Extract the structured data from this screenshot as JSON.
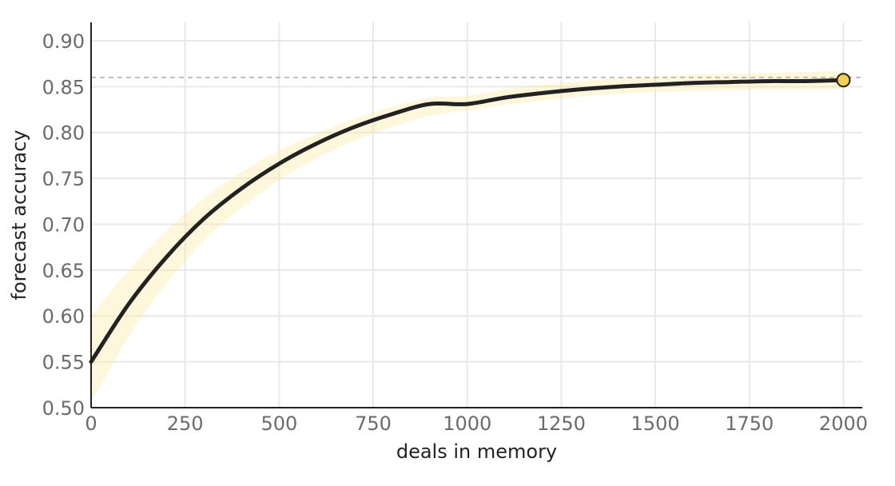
{
  "chart_data": {
    "type": "line",
    "title": "",
    "xlabel": "deals in memory",
    "ylabel": "forecast accuracy",
    "xlim": [
      0,
      2050
    ],
    "ylim": [
      0.5,
      0.92
    ],
    "x_ticks": [
      0,
      250,
      500,
      750,
      1000,
      1250,
      1500,
      1750,
      2000
    ],
    "y_ticks": [
      0.5,
      0.55,
      0.6,
      0.65,
      0.7,
      0.75,
      0.8,
      0.85,
      0.9
    ],
    "x_tick_labels": [
      "0",
      "250",
      "500",
      "750",
      "1000",
      "1250",
      "1500",
      "1750",
      "2000"
    ],
    "y_tick_labels": [
      "0.50",
      "0.55",
      "0.60",
      "0.65",
      "0.70",
      "0.75",
      "0.80",
      "0.85",
      "0.90"
    ],
    "grid": true,
    "reference_line": {
      "y": 0.86,
      "style": "dashed",
      "color": "#aaaaaa"
    },
    "series": [
      {
        "x": [
          0,
          100,
          200,
          300,
          400,
          500,
          600,
          700,
          800,
          900,
          1000,
          1100,
          1200,
          1300,
          1400,
          1500,
          1600,
          1700,
          1800,
          1900,
          2000
        ],
        "y": [
          0.55,
          0.613,
          0.664,
          0.706,
          0.739,
          0.766,
          0.788,
          0.806,
          0.82,
          0.831,
          0.831,
          0.838,
          0.843,
          0.847,
          0.85,
          0.852,
          0.854,
          0.855,
          0.856,
          0.856,
          0.857
        ],
        "y_lower": [
          0.505,
          0.578,
          0.635,
          0.682,
          0.718,
          0.748,
          0.772,
          0.791,
          0.806,
          0.818,
          0.824,
          0.83,
          0.835,
          0.839,
          0.842,
          0.844,
          0.845,
          0.846,
          0.847,
          0.847,
          0.847
        ],
        "y_upper": [
          0.6,
          0.65,
          0.693,
          0.728,
          0.757,
          0.78,
          0.799,
          0.815,
          0.828,
          0.838,
          0.84,
          0.847,
          0.852,
          0.856,
          0.859,
          0.861,
          0.863,
          0.864,
          0.865,
          0.866,
          0.867
        ],
        "color": "#222222",
        "band_color": "#fde79a"
      }
    ],
    "highlight_point": {
      "x": 2000,
      "y": 0.857,
      "color": "#f5cf4f"
    }
  }
}
